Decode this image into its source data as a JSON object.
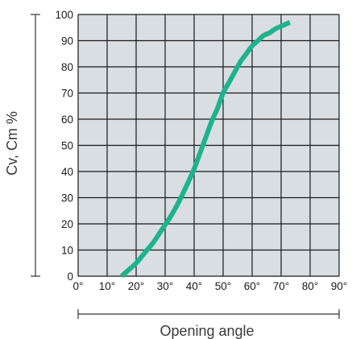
{
  "chart_data": {
    "type": "line",
    "title": "",
    "xlabel": "Opening angle",
    "ylabel": "Cv, Cm %",
    "xlim": [
      0,
      90
    ],
    "ylim": [
      0,
      100
    ],
    "x_ticks": [
      0,
      10,
      20,
      30,
      40,
      50,
      60,
      70,
      80,
      90
    ],
    "x_tick_labels": [
      "0°",
      "10°",
      "20°",
      "30°",
      "40°",
      "50°",
      "60°",
      "70°",
      "80°",
      "90°"
    ],
    "y_ticks": [
      0,
      10,
      20,
      30,
      40,
      50,
      60,
      70,
      80,
      90,
      100
    ],
    "y_tick_labels": [
      "0",
      "10",
      "20",
      "30",
      "40",
      "50",
      "60",
      "70",
      "80",
      "90",
      "100"
    ],
    "grid": true,
    "plot_background": "#d9dee2",
    "series": [
      {
        "color": "#1db38d",
        "x": [
          15,
          17,
          20,
          23,
          26,
          29,
          32,
          35,
          38,
          40,
          42,
          44,
          46,
          48,
          50,
          52,
          54,
          56,
          58,
          60,
          62,
          64,
          66,
          68,
          70,
          72,
          73
        ],
        "y": [
          0,
          2,
          5,
          9,
          13,
          18,
          23,
          29,
          36,
          41,
          47,
          53,
          59,
          64,
          70,
          74,
          78,
          82,
          85,
          88,
          90,
          92,
          93,
          94.5,
          95.5,
          96.5,
          97
        ]
      }
    ]
  }
}
